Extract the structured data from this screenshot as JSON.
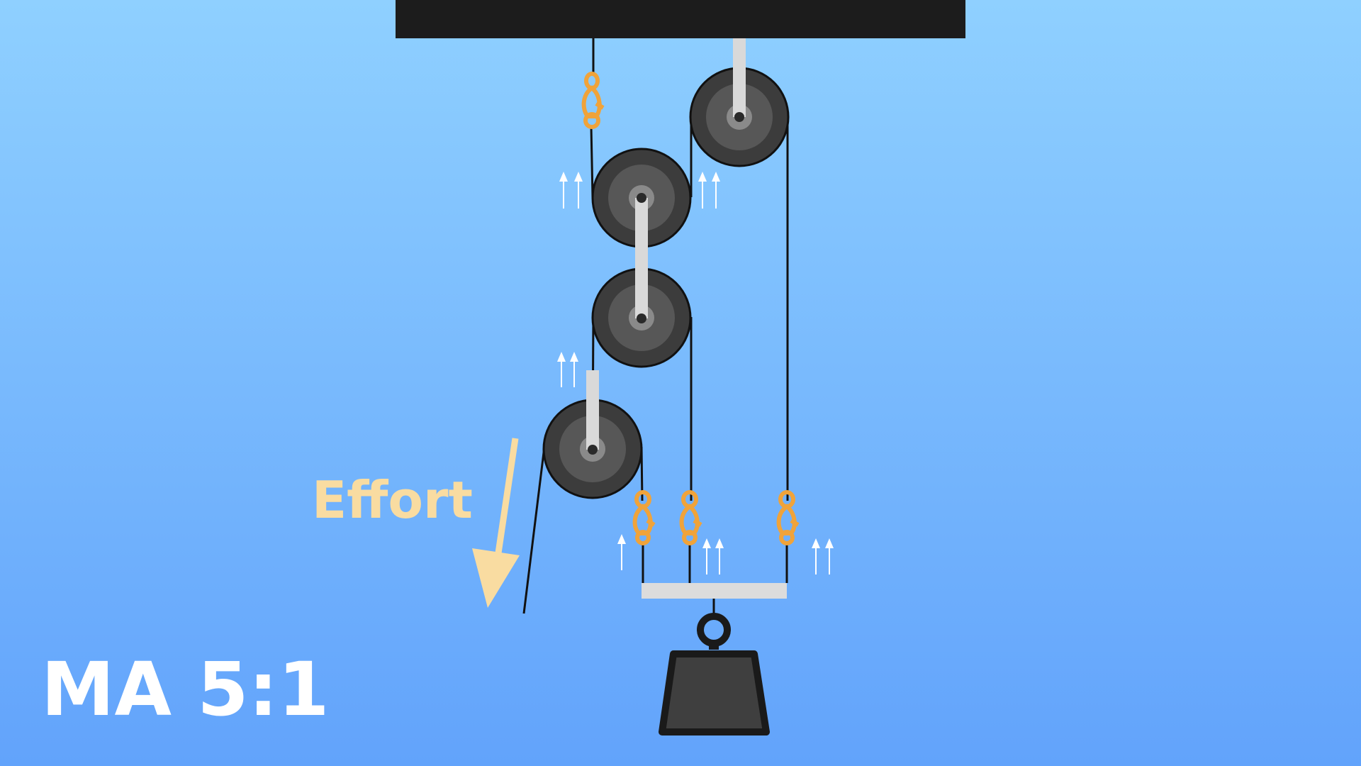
{
  "diagram": {
    "effort_label": "Effort",
    "ma_label": "MA 5:1",
    "pulley_count": 4,
    "supporting_rope_segments": 5
  },
  "colors": {
    "background_top": "#8fd0ff",
    "background_bottom": "#62a3fb",
    "ceiling": "#1c1c1c",
    "pulley_outer": "#3c3c3c",
    "pulley_inner": "#575757",
    "hub": "#8a8a8a",
    "axle": "#2a2a2a",
    "strap": "#d9d9d9",
    "rope": "#111111",
    "clip": "#f0a33a",
    "arrow_small": "#ffffff",
    "effort": "#f9dca1",
    "ma_text": "#ffffff",
    "weight_body": "#3f3f3f",
    "weight_outline": "#1a1a1a",
    "spreader_bar": "#dcdcdc"
  }
}
